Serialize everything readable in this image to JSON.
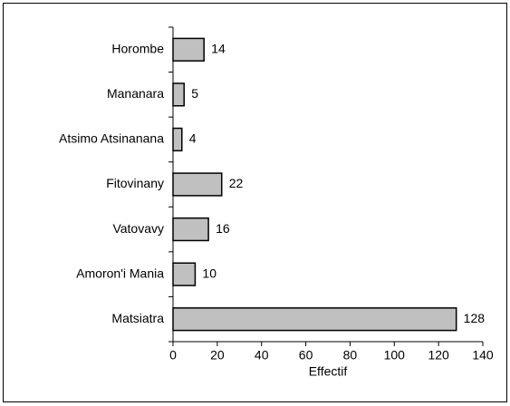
{
  "chart_data": {
    "type": "bar",
    "orientation": "horizontal",
    "categories": [
      "Horombe",
      "Mananara",
      "Atsimo Atsinanana",
      "Fitovinany",
      "Vatovavy",
      "Amoron'i Mania",
      "Matsiatra"
    ],
    "values": [
      14,
      5,
      4,
      22,
      16,
      10,
      128
    ],
    "color": "#c0c0c0",
    "xlabel": "Effectif",
    "xlim": [
      0,
      140
    ],
    "xticks": [
      0,
      20,
      40,
      60,
      80,
      100,
      120,
      140
    ],
    "grid": false
  }
}
